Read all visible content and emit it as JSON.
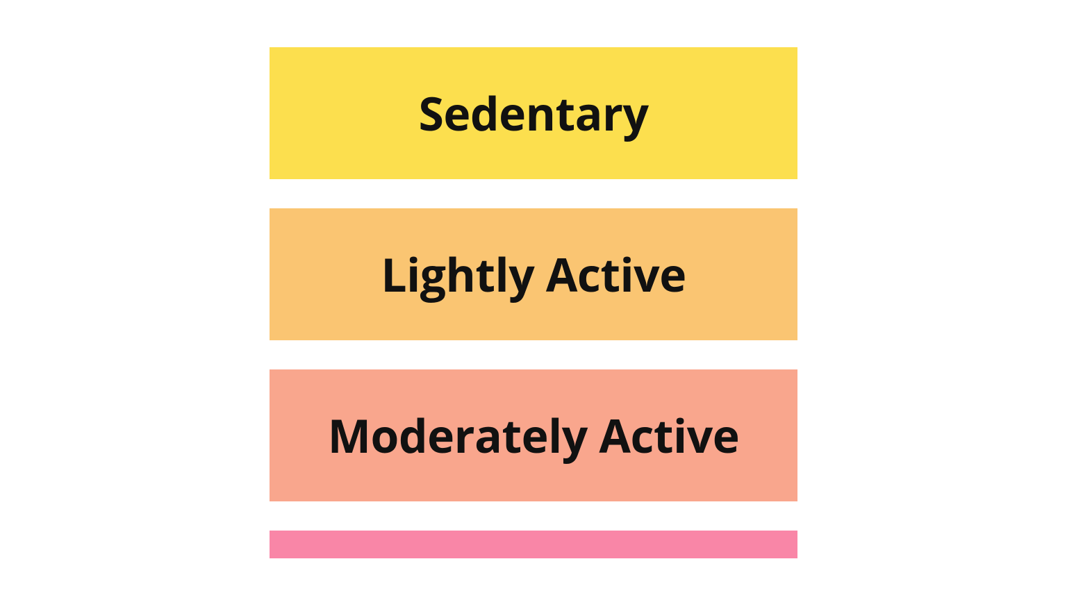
{
  "activity_levels": {
    "items": [
      {
        "label": "Sedentary",
        "background_color": "#fcdf4e"
      },
      {
        "label": "Lightly Active",
        "background_color": "#fac572"
      },
      {
        "label": "Moderately Active",
        "background_color": "#f9a68d"
      },
      {
        "label": "",
        "background_color": "#f986a7"
      }
    ],
    "button_width": 760,
    "button_height": 190,
    "gap": 42,
    "top_padding": 68,
    "font_size": 66,
    "font_weight": 700,
    "text_color": "#111111",
    "page_background": "#ffffff"
  }
}
